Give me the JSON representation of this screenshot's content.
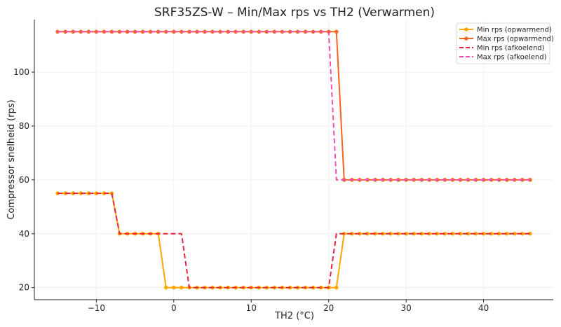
{
  "chart_data": {
    "type": "line",
    "title": "SRF35ZS-W – Min/Max rps vs TH2 (Verwarmen)",
    "xlabel": "TH2 (°C)",
    "ylabel": "Compressor snelheid (rps)",
    "xlim": [
      -18,
      49
    ],
    "ylim": [
      15.5,
      119.5
    ],
    "xticks": [
      -10,
      0,
      10,
      20,
      30,
      40
    ],
    "yticks": [
      20,
      40,
      60,
      80,
      100
    ],
    "xtick_labels": [
      "−10",
      "0",
      "10",
      "20",
      "30",
      "40"
    ],
    "ytick_labels": [
      "20",
      "40",
      "60",
      "80",
      "100"
    ],
    "grid": true,
    "legend_position": "top-right",
    "x": [
      -15,
      -14,
      -13,
      -12,
      -11,
      -10,
      -9,
      -8,
      -7,
      -6,
      -5,
      -4,
      -3,
      -2,
      -1,
      0,
      1,
      2,
      3,
      4,
      5,
      6,
      7,
      8,
      9,
      10,
      11,
      12,
      13,
      14,
      15,
      16,
      17,
      18,
      19,
      20,
      21,
      22,
      23,
      24,
      25,
      26,
      27,
      28,
      29,
      30,
      31,
      32,
      33,
      34,
      35,
      36,
      37,
      38,
      39,
      40,
      41,
      42,
      43,
      44,
      45,
      46
    ],
    "series": [
      {
        "name": "Min rps (opwarmend)",
        "color": "#ffa500",
        "style": "solid",
        "markers": true,
        "values": [
          55,
          55,
          55,
          55,
          55,
          55,
          55,
          55,
          40,
          40,
          40,
          40,
          40,
          40,
          20,
          20,
          20,
          20,
          20,
          20,
          20,
          20,
          20,
          20,
          20,
          20,
          20,
          20,
          20,
          20,
          20,
          20,
          20,
          20,
          20,
          20,
          20,
          40,
          40,
          40,
          40,
          40,
          40,
          40,
          40,
          40,
          40,
          40,
          40,
          40,
          40,
          40,
          40,
          40,
          40,
          40,
          40,
          40,
          40,
          40,
          40,
          40
        ]
      },
      {
        "name": "Max rps (opwarmend)",
        "color": "#f26522",
        "style": "solid",
        "markers": true,
        "values": [
          115,
          115,
          115,
          115,
          115,
          115,
          115,
          115,
          115,
          115,
          115,
          115,
          115,
          115,
          115,
          115,
          115,
          115,
          115,
          115,
          115,
          115,
          115,
          115,
          115,
          115,
          115,
          115,
          115,
          115,
          115,
          115,
          115,
          115,
          115,
          115,
          115,
          60,
          60,
          60,
          60,
          60,
          60,
          60,
          60,
          60,
          60,
          60,
          60,
          60,
          60,
          60,
          60,
          60,
          60,
          60,
          60,
          60,
          60,
          60,
          60,
          60
        ]
      },
      {
        "name": "Min rps (afkoelend)",
        "color": "#e8253f",
        "style": "dashed",
        "markers": false,
        "values": [
          55,
          55,
          55,
          55,
          55,
          55,
          55,
          55,
          40,
          40,
          40,
          40,
          40,
          40,
          40,
          40,
          40,
          20,
          20,
          20,
          20,
          20,
          20,
          20,
          20,
          20,
          20,
          20,
          20,
          20,
          20,
          20,
          20,
          20,
          20,
          20,
          40,
          40,
          40,
          40,
          40,
          40,
          40,
          40,
          40,
          40,
          40,
          40,
          40,
          40,
          40,
          40,
          40,
          40,
          40,
          40,
          40,
          40,
          40,
          40,
          40,
          40
        ]
      },
      {
        "name": "Max rps (afkoelend)",
        "color": "#f050b0",
        "style": "dashed",
        "markers": false,
        "values": [
          115,
          115,
          115,
          115,
          115,
          115,
          115,
          115,
          115,
          115,
          115,
          115,
          115,
          115,
          115,
          115,
          115,
          115,
          115,
          115,
          115,
          115,
          115,
          115,
          115,
          115,
          115,
          115,
          115,
          115,
          115,
          115,
          115,
          115,
          115,
          115,
          60,
          60,
          60,
          60,
          60,
          60,
          60,
          60,
          60,
          60,
          60,
          60,
          60,
          60,
          60,
          60,
          60,
          60,
          60,
          60,
          60,
          60,
          60,
          60,
          60,
          60
        ]
      }
    ]
  }
}
